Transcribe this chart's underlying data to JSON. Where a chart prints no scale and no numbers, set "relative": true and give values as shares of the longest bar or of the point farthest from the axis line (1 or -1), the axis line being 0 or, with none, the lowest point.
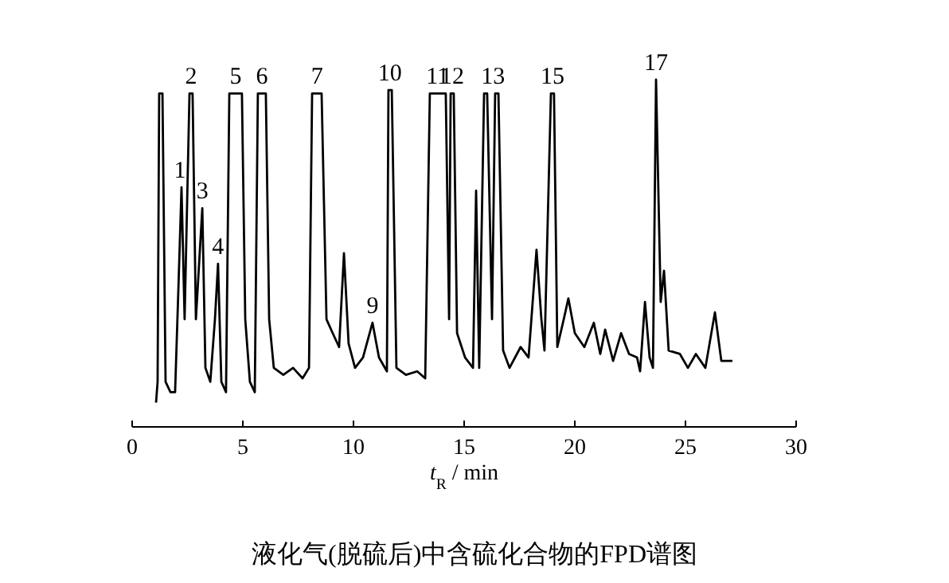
{
  "chart_data": {
    "type": "line",
    "relative": true,
    "xlabel": "*t*$_{R}$ / min",
    "xlim": [
      0,
      30
    ],
    "xticks": [
      0,
      5,
      10,
      15,
      20,
      25,
      30
    ],
    "x": [
      1.08,
      1.15,
      1.22,
      1.37,
      1.51,
      1.73,
      1.94,
      2.09,
      2.23,
      2.37,
      2.59,
      2.73,
      2.88,
      3.17,
      3.31,
      3.53,
      3.74,
      3.88,
      4.03,
      4.24,
      4.39,
      4.96,
      5.11,
      5.32,
      5.54,
      5.68,
      6.04,
      6.19,
      6.4,
      6.83,
      7.27,
      7.7,
      7.99,
      8.13,
      8.56,
      8.78,
      9.06,
      9.35,
      9.57,
      9.78,
      10.07,
      10.43,
      10.86,
      11.15,
      11.51,
      11.58,
      11.73,
      11.94,
      12.37,
      12.88,
      13.24,
      13.45,
      14.17,
      14.32,
      14.39,
      14.53,
      14.68,
      15.04,
      15.4,
      15.54,
      15.68,
      15.9,
      16.04,
      16.26,
      16.4,
      16.55,
      16.76,
      17.05,
      17.55,
      17.91,
      18.27,
      18.49,
      18.63,
      18.92,
      19.06,
      19.21,
      19.5,
      19.71,
      20.0,
      20.43,
      20.86,
      21.15,
      21.37,
      21.73,
      22.09,
      22.45,
      22.81,
      22.95,
      23.17,
      23.38,
      23.53,
      23.67,
      23.88,
      24.03,
      24.24,
      24.75,
      25.11,
      25.47,
      25.9,
      26.33,
      26.62,
      27.12
    ],
    "series": [
      {
        "color": "#000000",
        "values": [
          0.07,
          0.13,
          0.96,
          0.96,
          0.13,
          0.1,
          0.1,
          0.4,
          0.69,
          0.31,
          0.96,
          0.96,
          0.31,
          0.63,
          0.17,
          0.13,
          0.31,
          0.47,
          0.13,
          0.1,
          0.96,
          0.96,
          0.31,
          0.13,
          0.1,
          0.96,
          0.96,
          0.31,
          0.17,
          0.15,
          0.17,
          0.14,
          0.17,
          0.96,
          0.96,
          0.31,
          0.27,
          0.23,
          0.5,
          0.24,
          0.17,
          0.2,
          0.3,
          0.2,
          0.16,
          0.97,
          0.97,
          0.17,
          0.15,
          0.16,
          0.14,
          0.96,
          0.96,
          0.31,
          0.96,
          0.96,
          0.27,
          0.2,
          0.17,
          0.68,
          0.17,
          0.96,
          0.96,
          0.31,
          0.96,
          0.96,
          0.22,
          0.17,
          0.23,
          0.2,
          0.51,
          0.31,
          0.22,
          0.96,
          0.96,
          0.23,
          0.31,
          0.37,
          0.27,
          0.23,
          0.3,
          0.21,
          0.28,
          0.19,
          0.27,
          0.21,
          0.2,
          0.16,
          0.36,
          0.2,
          0.17,
          1.0,
          0.36,
          0.45,
          0.22,
          0.21,
          0.17,
          0.21,
          0.17,
          0.33,
          0.19,
          0.19
        ]
      }
    ],
    "annotations": [
      {
        "text": "1",
        "x": 2.16,
        "y": 0.69
      },
      {
        "text": "2",
        "x": 2.66,
        "y": 0.96
      },
      {
        "text": "3",
        "x": 3.17,
        "y": 0.63
      },
      {
        "text": "4",
        "x": 3.88,
        "y": 0.47
      },
      {
        "text": "5",
        "x": 4.68,
        "y": 0.96
      },
      {
        "text": "6",
        "x": 5.86,
        "y": 0.96
      },
      {
        "text": "7",
        "x": 8.35,
        "y": 0.96
      },
      {
        "text": "9",
        "x": 10.86,
        "y": 0.3
      },
      {
        "text": "10",
        "x": 11.65,
        "y": 0.97
      },
      {
        "text": "11",
        "x": 13.8,
        "y": 0.96
      },
      {
        "text": "12",
        "x": 14.46,
        "y": 0.96
      },
      {
        "text": "13",
        "x": 16.3,
        "y": 0.96
      },
      {
        "text": "15",
        "x": 18.99,
        "y": 0.96
      },
      {
        "text": "17",
        "x": 23.67,
        "y": 1.0
      },
      "液化气(脱硫后)中含硫化合物的FPD谱图"
    ]
  }
}
